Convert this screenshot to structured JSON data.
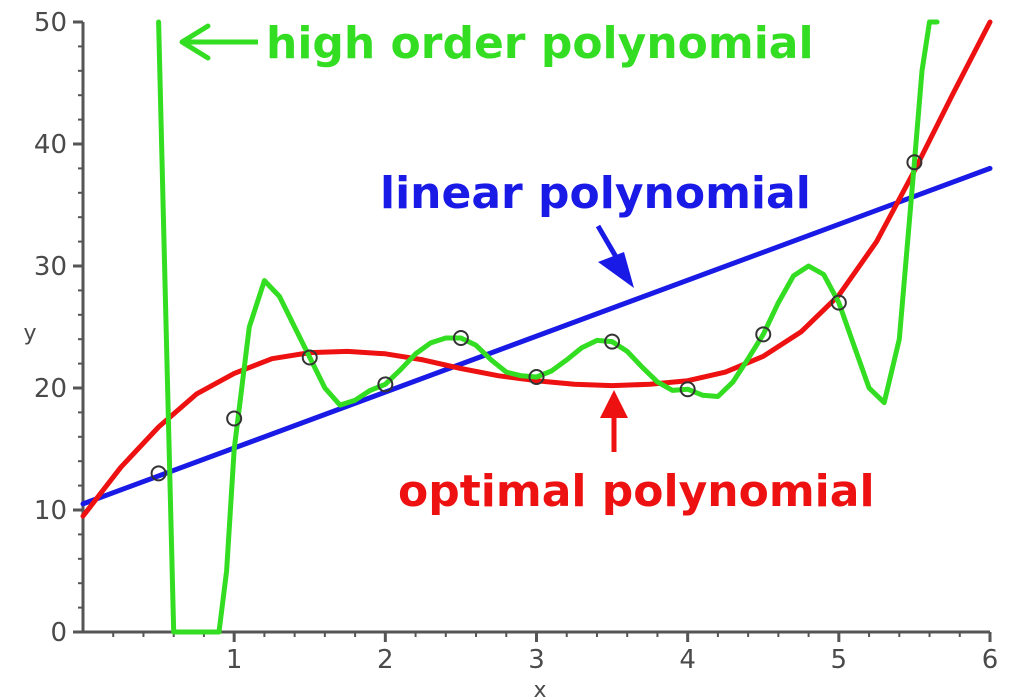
{
  "chart_data": {
    "type": "line",
    "xlabel": "x",
    "ylabel": "y",
    "xlim": [
      0,
      6
    ],
    "ylim": [
      0,
      50
    ],
    "xticks": [
      1,
      2,
      3,
      4,
      5,
      6
    ],
    "yticks": [
      0,
      10,
      20,
      30,
      40,
      50
    ],
    "grid": false,
    "points": {
      "x": [
        0.5,
        1.0,
        1.5,
        2.0,
        2.5,
        3.0,
        3.5,
        4.0,
        4.5,
        5.0,
        5.5
      ],
      "y": [
        13.0,
        17.5,
        22.5,
        20.3,
        24.1,
        20.9,
        23.8,
        19.9,
        24.4,
        27.0,
        38.5
      ]
    },
    "series": [
      {
        "color": "#1a1ae6",
        "x": [
          0.0,
          6.0
        ],
        "y": [
          10.5,
          38.0
        ]
      },
      {
        "color": "#ee1111",
        "x": [
          0.0,
          0.25,
          0.5,
          0.75,
          1.0,
          1.25,
          1.5,
          1.75,
          2.0,
          2.25,
          2.5,
          2.75,
          3.0,
          3.25,
          3.5,
          3.75,
          4.0,
          4.25,
          4.5,
          4.75,
          5.0,
          5.25,
          5.5,
          5.75,
          6.0
        ],
        "y": [
          9.5,
          13.5,
          16.8,
          19.5,
          21.2,
          22.4,
          22.9,
          23.0,
          22.8,
          22.3,
          21.6,
          21.0,
          20.6,
          20.3,
          20.2,
          20.3,
          20.6,
          21.3,
          22.6,
          24.6,
          27.6,
          32.0,
          37.8,
          44.0,
          50.0
        ]
      },
      {
        "color": "#33dd22",
        "x": [
          0.5,
          0.55,
          0.6,
          0.7,
          0.8,
          0.9,
          0.95,
          1.0,
          1.1,
          1.2,
          1.3,
          1.4,
          1.5,
          1.6,
          1.7,
          1.8,
          1.9,
          2.0,
          2.1,
          2.2,
          2.3,
          2.4,
          2.5,
          2.6,
          2.7,
          2.8,
          2.9,
          3.0,
          3.1,
          3.2,
          3.3,
          3.4,
          3.5,
          3.6,
          3.7,
          3.8,
          3.9,
          4.0,
          4.1,
          4.2,
          4.3,
          4.4,
          4.5,
          4.6,
          4.7,
          4.8,
          4.9,
          5.0,
          5.1,
          5.2,
          5.3,
          5.4,
          5.5,
          5.55,
          5.6,
          5.65
        ],
        "y": [
          50.0,
          25.0,
          0.0,
          0.0,
          0.0,
          0.0,
          5.0,
          15.0,
          25.0,
          28.8,
          27.5,
          25.0,
          22.5,
          20.0,
          18.6,
          19.0,
          19.8,
          20.3,
          21.5,
          22.8,
          23.7,
          24.1,
          24.1,
          23.5,
          22.3,
          21.3,
          21.0,
          20.9,
          21.4,
          22.3,
          23.3,
          23.9,
          23.8,
          23.0,
          21.7,
          20.5,
          19.8,
          19.9,
          19.4,
          19.3,
          20.5,
          22.4,
          24.4,
          27.0,
          29.2,
          30.0,
          29.3,
          27.0,
          23.5,
          20.0,
          18.8,
          24.0,
          38.5,
          46.0,
          50.0,
          50.0
        ]
      }
    ],
    "annotations": {
      "high_order": "high order polynomial",
      "linear": "linear polynomial",
      "optimal": "optimal polynomial"
    },
    "colors": {
      "axis": "#555555",
      "text": "#4a4a4a",
      "linear": "#1a1ae6",
      "optimal": "#ee1111",
      "high_order": "#33dd22"
    }
  }
}
